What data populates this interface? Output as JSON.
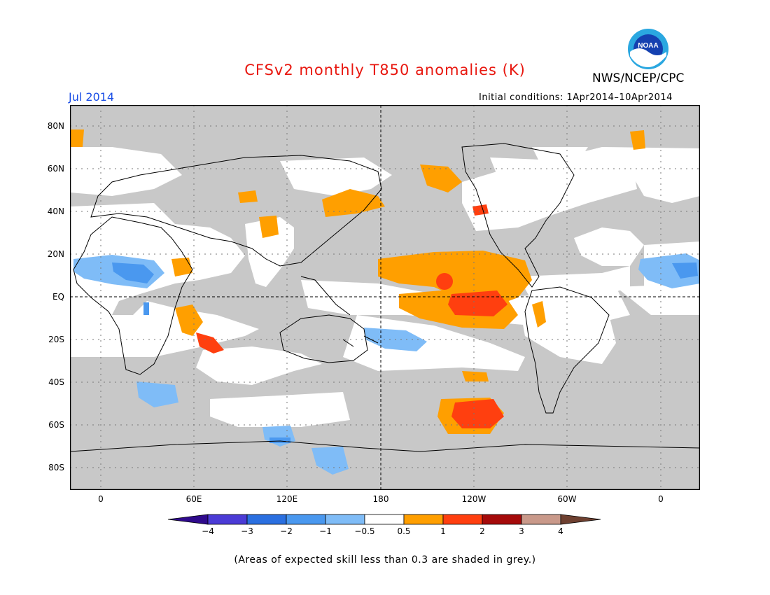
{
  "header": {
    "title": "CFSv2 monthly T850 anomalies (K)",
    "agency": "NWS/NCEP/CPC",
    "month": "Jul 2014",
    "initial_conditions": "Initial conditions: 1Apr2014–10Apr2014",
    "logo_text": "NOAA"
  },
  "map": {
    "lat_labels": [
      "80N",
      "60N",
      "40N",
      "20N",
      "EQ",
      "20S",
      "40S",
      "60S",
      "80S"
    ],
    "lon_labels": [
      "0",
      "60E",
      "120E",
      "180",
      "120W",
      "60W",
      "0"
    ],
    "colors": {
      "skill_mask": "#c8c8c8",
      "land_outline": "#000000",
      "grid": "#555555"
    }
  },
  "legend": {
    "labels": [
      "−4",
      "−3",
      "−2",
      "−1",
      "−0.5",
      "0.5",
      "1",
      "2",
      "3",
      "4"
    ],
    "colors": [
      "#2f0a8c",
      "#4b3bd6",
      "#2a6fe0",
      "#4a98ef",
      "#7fbcf7",
      "#ffffff",
      "#ff9f00",
      "#ff3f0f",
      "#a50a0a",
      "#c9998a",
      "#6e4030"
    ]
  },
  "note": "(Areas of expected skill less than 0.3 are shaded in grey.)"
}
